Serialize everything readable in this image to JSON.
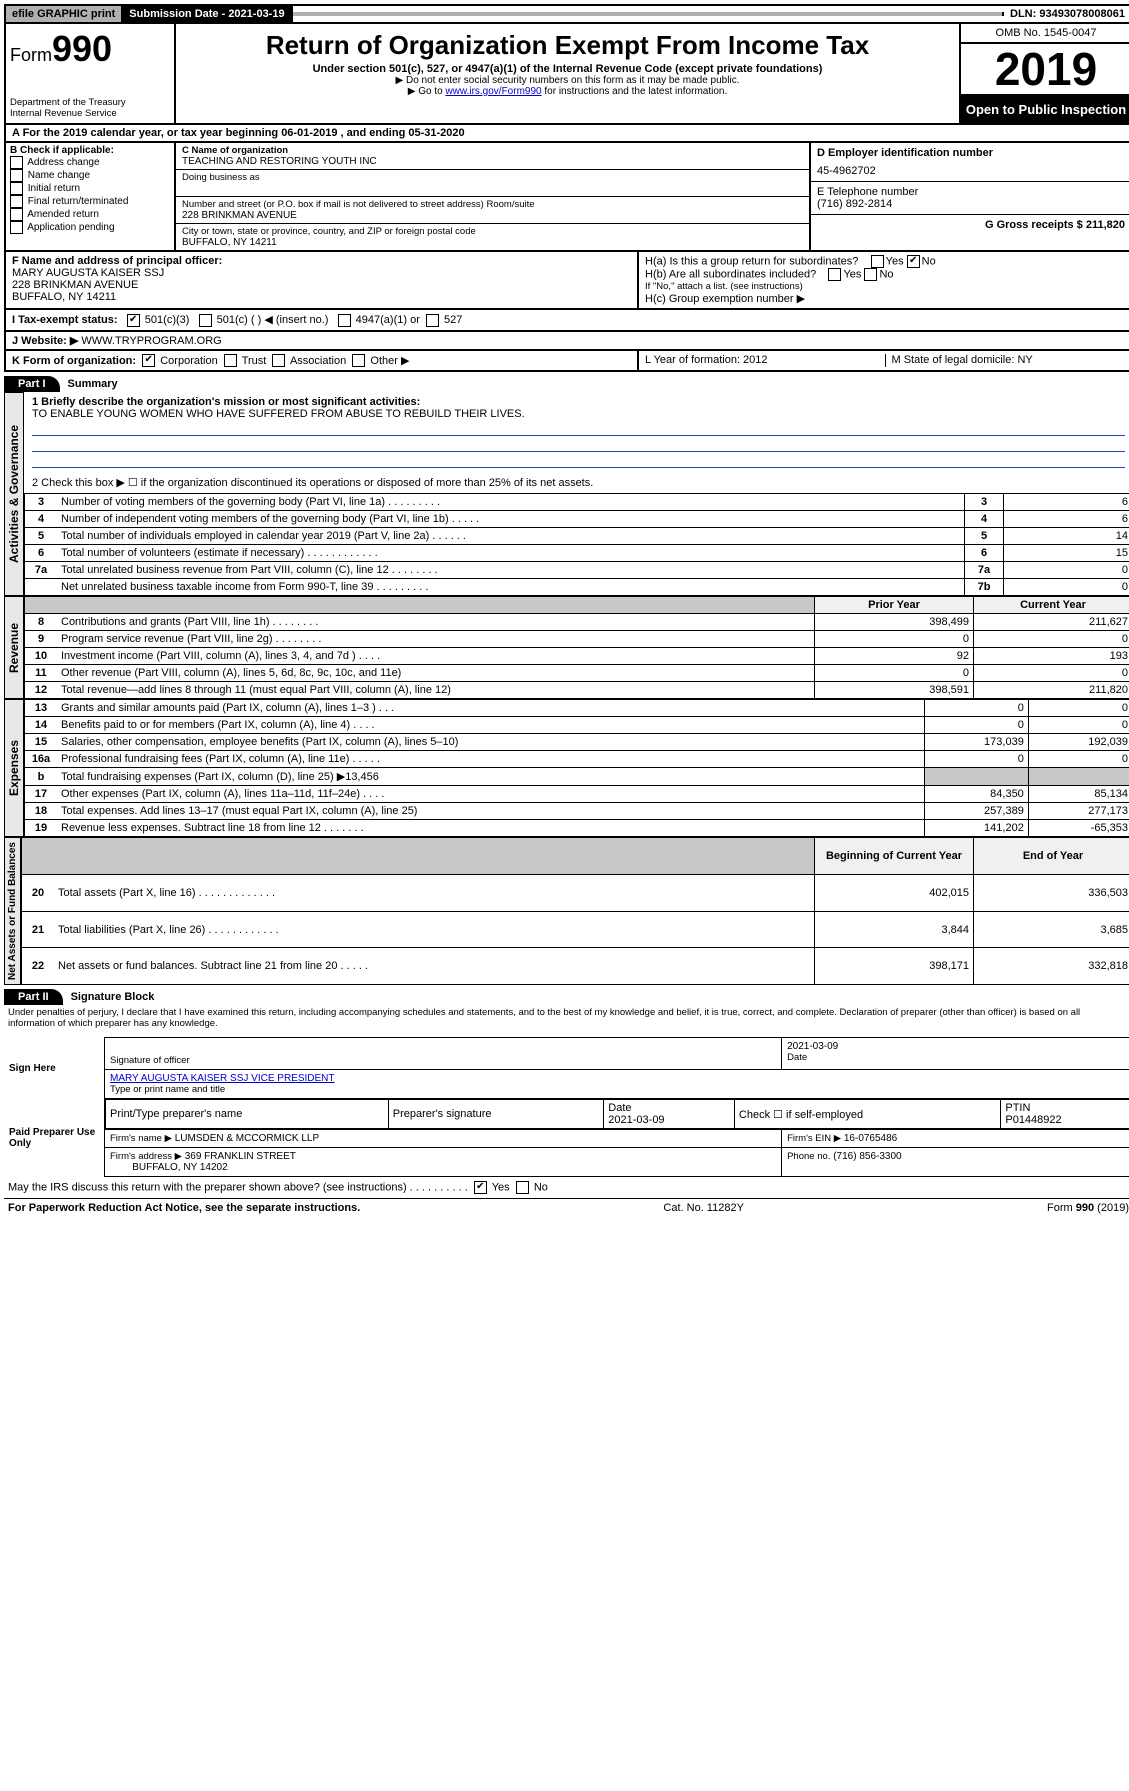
{
  "topbar": {
    "efile": "efile GRAPHIC print",
    "submission": "Submission Date - 2021-03-19",
    "dln": "DLN: 93493078008061"
  },
  "header": {
    "form_prefix": "Form",
    "form_number": "990",
    "dept1": "Department of the Treasury",
    "dept2": "Internal Revenue Service",
    "title": "Return of Organization Exempt From Income Tax",
    "subtitle": "Under section 501(c), 527, or 4947(a)(1) of the Internal Revenue Code (except private foundations)",
    "note1": "▶ Do not enter social security numbers on this form as it may be made public.",
    "note2_pre": "▶ Go to ",
    "note2_link": "www.irs.gov/Form990",
    "note2_post": " for instructions and the latest information.",
    "omb": "OMB No. 1545-0047",
    "year": "2019",
    "open": "Open to Public Inspection"
  },
  "lineA": "A For the 2019 calendar year, or tax year beginning 06-01-2019     , and ending 05-31-2020",
  "boxB": {
    "label": "B Check if applicable:",
    "items": [
      "Address change",
      "Name change",
      "Initial return",
      "Final return/terminated",
      "Amended return",
      "Application pending"
    ]
  },
  "boxC": {
    "name_label": "C Name of organization",
    "name": "TEACHING AND RESTORING YOUTH INC",
    "dba_label": "Doing business as",
    "addr_label": "Number and street (or P.O. box if mail is not delivered to street address)        Room/suite",
    "addr": "228 BRINKMAN AVENUE",
    "city_label": "City or town, state or province, country, and ZIP or foreign postal code",
    "city": "BUFFALO, NY  14211"
  },
  "boxD": {
    "label": "D Employer identification number",
    "value": "45-4962702"
  },
  "boxE": {
    "label": "E Telephone number",
    "value": "(716) 892-2814"
  },
  "boxG": {
    "label": "G Gross receipts $ 211,820"
  },
  "boxF": {
    "label": "F  Name and address of principal officer:",
    "name": "MARY AUGUSTA KAISER SSJ",
    "addr": "228 BRINKMAN AVENUE",
    "city": "BUFFALO, NY  14211"
  },
  "boxH": {
    "a": "H(a)  Is this a group return for subordinates?",
    "b": "H(b)  Are all subordinates included?",
    "bnote": "If \"No,\" attach a list. (see instructions)",
    "c": "H(c)  Group exemption number ▶"
  },
  "rowI": {
    "label": "I    Tax-exempt status:",
    "opts": [
      "501(c)(3)",
      "501(c) (   ) ◀ (insert no.)",
      "4947(a)(1) or",
      "527"
    ]
  },
  "rowJ": {
    "label": "J    Website: ▶",
    "value": "  WWW.TRYPROGRAM.ORG"
  },
  "rowK": {
    "label": "K Form of organization:",
    "opts": [
      "Corporation",
      "Trust",
      "Association",
      "Other ▶"
    ],
    "L": "L Year of formation: 2012",
    "M": "M State of legal domicile: NY"
  },
  "partI": {
    "tab": "Part I",
    "title": "Summary"
  },
  "summary": {
    "sideA": "Activities & Governance",
    "l1": "1  Briefly describe the organization's mission or most significant activities:",
    "mission": "TO ENABLE YOUNG WOMEN WHO HAVE SUFFERED FROM ABUSE TO REBUILD THEIR LIVES.",
    "l2": "2   Check this box ▶ ☐  if the organization discontinued its operations or disposed of more than 25% of its net assets.",
    "rows_gov": [
      {
        "n": "3",
        "d": "Number of voting members of the governing body (Part VI, line 1a)  .   .   .   .   .   .   .   .   .",
        "b": "3",
        "v": "6"
      },
      {
        "n": "4",
        "d": "Number of independent voting members of the governing body (Part VI, line 1b)  .   .   .   .   .",
        "b": "4",
        "v": "6"
      },
      {
        "n": "5",
        "d": "Total number of individuals employed in calendar year 2019 (Part V, line 2a)  .   .   .   .   .   .",
        "b": "5",
        "v": "14"
      },
      {
        "n": "6",
        "d": "Total number of volunteers (estimate if necessary)  .   .   .   .   .   .   .   .   .   .   .   .",
        "b": "6",
        "v": "15"
      },
      {
        "n": "7a",
        "d": "Total unrelated business revenue from Part VIII, column (C), line 12  .   .   .   .   .   .   .   .",
        "b": "7a",
        "v": "0"
      },
      {
        "n": "",
        "d": "Net unrelated business taxable income from Form 990-T, line 39  .   .   .   .   .   .   .   .   .",
        "b": "7b",
        "v": "0"
      }
    ],
    "hdr_prior": "Prior Year",
    "hdr_curr": "Current Year",
    "sideR": "Revenue",
    "rows_rev": [
      {
        "n": "8",
        "d": "Contributions and grants (Part VIII, line 1h)  .   .   .   .   .   .   .   .",
        "p": "398,499",
        "c": "211,627"
      },
      {
        "n": "9",
        "d": "Program service revenue (Part VIII, line 2g)  .   .   .   .   .   .   .   .",
        "p": "0",
        "c": "0"
      },
      {
        "n": "10",
        "d": "Investment income (Part VIII, column (A), lines 3, 4, and 7d )  .   .   .   .",
        "p": "92",
        "c": "193"
      },
      {
        "n": "11",
        "d": "Other revenue (Part VIII, column (A), lines 5, 6d, 8c, 9c, 10c, and 11e)",
        "p": "0",
        "c": "0"
      },
      {
        "n": "12",
        "d": "Total revenue—add lines 8 through 11 (must equal Part VIII, column (A), line 12)",
        "p": "398,591",
        "c": "211,820"
      }
    ],
    "sideE": "Expenses",
    "rows_exp": [
      {
        "n": "13",
        "d": "Grants and similar amounts paid (Part IX, column (A), lines 1–3 )  .   .   .",
        "p": "0",
        "c": "0"
      },
      {
        "n": "14",
        "d": "Benefits paid to or for members (Part IX, column (A), line 4)  .   .   .   .",
        "p": "0",
        "c": "0"
      },
      {
        "n": "15",
        "d": "Salaries, other compensation, employee benefits (Part IX, column (A), lines 5–10)",
        "p": "173,039",
        "c": "192,039"
      },
      {
        "n": "16a",
        "d": "Professional fundraising fees (Part IX, column (A), line 11e)  .   .   .   .   .",
        "p": "0",
        "c": "0"
      },
      {
        "n": "b",
        "d": "Total fundraising expenses (Part IX, column (D), line 25) ▶13,456",
        "p": "",
        "c": "",
        "shaded": true
      },
      {
        "n": "17",
        "d": "Other expenses (Part IX, column (A), lines 11a–11d, 11f–24e)  .   .   .   .",
        "p": "84,350",
        "c": "85,134"
      },
      {
        "n": "18",
        "d": "Total expenses. Add lines 13–17 (must equal Part IX, column (A), line 25)",
        "p": "257,389",
        "c": "277,173"
      },
      {
        "n": "19",
        "d": "Revenue less expenses. Subtract line 18 from line 12  .   .   .   .   .   .   .",
        "p": "141,202",
        "c": "-65,353"
      }
    ],
    "hdr_beg": "Beginning of Current Year",
    "hdr_end": "End of Year",
    "sideN": "Net Assets or Fund Balances",
    "rows_net": [
      {
        "n": "20",
        "d": "Total assets (Part X, line 16)  .   .   .   .   .   .   .   .   .   .   .   .   .",
        "p": "402,015",
        "c": "336,503"
      },
      {
        "n": "21",
        "d": "Total liabilities (Part X, line 26)  .   .   .   .   .   .   .   .   .   .   .   .",
        "p": "3,844",
        "c": "3,685"
      },
      {
        "n": "22",
        "d": "Net assets or fund balances. Subtract line 21 from line 20  .   .   .   .   .",
        "p": "398,171",
        "c": "332,818"
      }
    ]
  },
  "partII": {
    "tab": "Part II",
    "title": "Signature Block",
    "decl": "Under penalties of perjury, I declare that I have examined this return, including accompanying schedules and statements, and to the best of my knowledge and belief, it is true, correct, and complete. Declaration of preparer (other than officer) is based on all information of which preparer has any knowledge."
  },
  "sign": {
    "side": "Sign Here",
    "sig_label": "Signature of officer",
    "date": "2021-03-09",
    "date_label": "Date",
    "name": "MARY AUGUSTA KAISER SSJ VICE PRESIDENT",
    "name_label": "Type or print name and title"
  },
  "paid": {
    "side": "Paid Preparer Use Only",
    "h1": "Print/Type preparer's name",
    "h2": "Preparer's signature",
    "h3": "Date",
    "h4": "Check ☐ if self-employed",
    "h5": "PTIN",
    "date": "2021-03-09",
    "ptin": "P01448922",
    "firm_label": "Firm's name    ▶",
    "firm": "LUMSDEN & MCCORMICK LLP",
    "ein_label": "Firm's EIN ▶",
    "ein": "16-0765486",
    "addr_label": "Firm's address ▶",
    "addr1": "369 FRANKLIN STREET",
    "addr2": "BUFFALO, NY  14202",
    "phone_label": "Phone no.",
    "phone": "(716) 856-3300"
  },
  "discuss": "May the IRS discuss this return with the preparer shown above? (see instructions)   .   .   .   .   .   .   .   .   .   .",
  "footer": {
    "left": "For Paperwork Reduction Act Notice, see the separate instructions.",
    "mid": "Cat. No. 11282Y",
    "right": "Form 990 (2019)"
  }
}
